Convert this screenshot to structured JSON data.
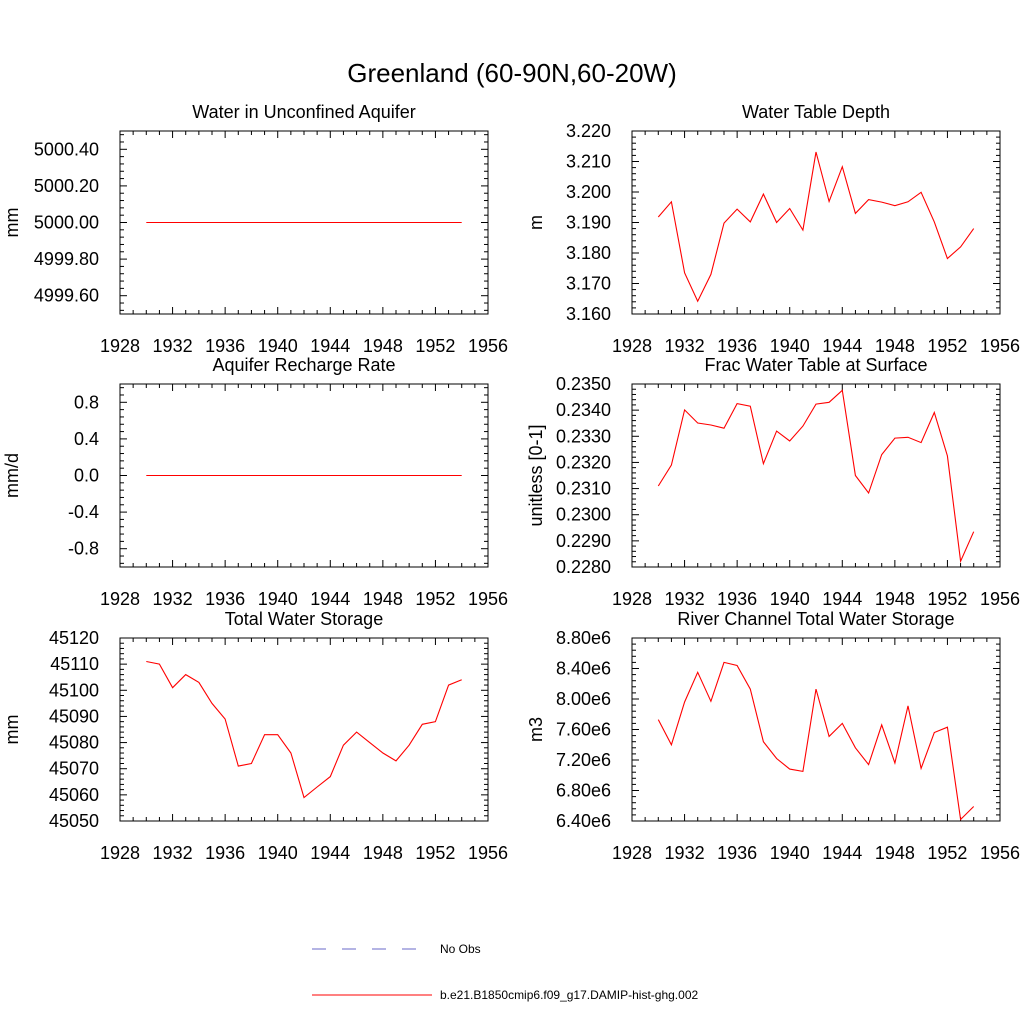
{
  "title": "Greenland (60-90N,60-20W)",
  "legend": [
    {
      "label": "No Obs",
      "color": "#6a6ac8",
      "style": "dashed"
    },
    {
      "label": "b.e21.B1850cmip6.f09_g17.DAMIP-hist-ghg.002",
      "color": "#ff0000",
      "style": "solid"
    }
  ],
  "chart_data": [
    {
      "type": "line",
      "title": "Water in Unconfined Aquifer",
      "ylabel": "mm",
      "xlim": [
        1928,
        1956
      ],
      "xticks": [
        "1928",
        "1932",
        "1936",
        "1940",
        "1944",
        "1948",
        "1952",
        "1956"
      ],
      "ylim": [
        4999.5,
        5000.5
      ],
      "yticks": [
        "4999.60",
        "4999.80",
        "5000.00",
        "5000.20",
        "5000.40"
      ],
      "grid": false,
      "x": [
        1930,
        1931,
        1932,
        1933,
        1934,
        1935,
        1936,
        1937,
        1938,
        1939,
        1940,
        1941,
        1942,
        1943,
        1944,
        1945,
        1946,
        1947,
        1948,
        1949,
        1950,
        1951,
        1952,
        1953,
        1954
      ],
      "series": [
        {
          "color": "#ff0000",
          "values": [
            5000,
            5000,
            5000,
            5000,
            5000,
            5000,
            5000,
            5000,
            5000,
            5000,
            5000,
            5000,
            5000,
            5000,
            5000,
            5000,
            5000,
            5000,
            5000,
            5000,
            5000,
            5000,
            5000,
            5000,
            5000
          ]
        }
      ]
    },
    {
      "type": "line",
      "title": "Water Table Depth",
      "ylabel": "m",
      "xlim": [
        1928,
        1956
      ],
      "xticks": [
        "1928",
        "1932",
        "1936",
        "1940",
        "1944",
        "1948",
        "1952",
        "1956"
      ],
      "ylim": [
        3.16,
        3.22
      ],
      "yticks": [
        "3.160",
        "3.170",
        "3.180",
        "3.190",
        "3.200",
        "3.210",
        "3.220"
      ],
      "grid": false,
      "x": [
        1930,
        1931,
        1932,
        1933,
        1934,
        1935,
        1936,
        1937,
        1938,
        1939,
        1940,
        1941,
        1942,
        1943,
        1944,
        1945,
        1946,
        1947,
        1948,
        1949,
        1950,
        1951,
        1952,
        1953,
        1954
      ],
      "series": [
        {
          "color": "#ff0000",
          "values": [
            3.1918,
            3.1968,
            3.1735,
            3.1642,
            3.173,
            3.1898,
            3.1944,
            3.1902,
            3.1993,
            3.19,
            3.1946,
            3.1875,
            3.2131,
            3.1969,
            3.2083,
            3.193,
            3.1975,
            3.1967,
            3.1955,
            3.1968,
            3.1999,
            3.1902,
            3.1782,
            3.182,
            3.188
          ]
        }
      ]
    },
    {
      "type": "line",
      "title": "Aquifer Recharge Rate",
      "ylabel": "mm/d",
      "xlim": [
        1928,
        1956
      ],
      "xticks": [
        "1928",
        "1932",
        "1936",
        "1940",
        "1944",
        "1948",
        "1952",
        "1956"
      ],
      "ylim": [
        -1,
        1
      ],
      "yticks": [
        "-0.8",
        "-0.4",
        "0.0",
        "0.4",
        "0.8"
      ],
      "grid": false,
      "x": [
        1930,
        1931,
        1932,
        1933,
        1934,
        1935,
        1936,
        1937,
        1938,
        1939,
        1940,
        1941,
        1942,
        1943,
        1944,
        1945,
        1946,
        1947,
        1948,
        1949,
        1950,
        1951,
        1952,
        1953,
        1954
      ],
      "series": [
        {
          "color": "#ff0000",
          "values": [
            0,
            0,
            0,
            0,
            0,
            0,
            0,
            0,
            0,
            0,
            0,
            0,
            0,
            0,
            0,
            0,
            0,
            0,
            0,
            0,
            0,
            0,
            0,
            0,
            0
          ]
        }
      ]
    },
    {
      "type": "line",
      "title": "Frac Water Table at Surface",
      "ylabel": "unitless [0-1]",
      "xlim": [
        1928,
        1956
      ],
      "xticks": [
        "1928",
        "1932",
        "1936",
        "1940",
        "1944",
        "1948",
        "1952",
        "1956"
      ],
      "ylim": [
        0.228,
        0.235
      ],
      "yticks": [
        "0.2280",
        "0.2290",
        "0.2300",
        "0.2310",
        "0.2320",
        "0.2330",
        "0.2340",
        "0.2350"
      ],
      "grid": false,
      "x": [
        1930,
        1931,
        1932,
        1933,
        1934,
        1935,
        1936,
        1937,
        1938,
        1939,
        1940,
        1941,
        1942,
        1943,
        1944,
        1945,
        1946,
        1947,
        1948,
        1949,
        1950,
        1951,
        1952,
        1953,
        1954
      ],
      "series": [
        {
          "color": "#ff0000",
          "values": [
            0.2311,
            0.2319,
            0.23401,
            0.23351,
            0.23343,
            0.23331,
            0.23425,
            0.23415,
            0.23195,
            0.2332,
            0.23282,
            0.23339,
            0.23423,
            0.2343,
            0.23476,
            0.2315,
            0.23083,
            0.2323,
            0.23293,
            0.23296,
            0.23276,
            0.23391,
            0.23225,
            0.22822,
            0.22935
          ]
        }
      ]
    },
    {
      "type": "line",
      "title": "Total Water Storage",
      "ylabel": "mm",
      "xlim": [
        1928,
        1956
      ],
      "xticks": [
        "1928",
        "1932",
        "1936",
        "1940",
        "1944",
        "1948",
        "1952",
        "1956"
      ],
      "ylim": [
        45050,
        45120
      ],
      "yticks": [
        "45050",
        "45060",
        "45070",
        "45080",
        "45090",
        "45100",
        "45110",
        "45120"
      ],
      "grid": false,
      "x": [
        1930,
        1931,
        1932,
        1933,
        1934,
        1935,
        1936,
        1937,
        1938,
        1939,
        1940,
        1941,
        1942,
        1943,
        1944,
        1945,
        1946,
        1947,
        1948,
        1949,
        1950,
        1951,
        1952,
        1953,
        1954
      ],
      "series": [
        {
          "color": "#ff0000",
          "values": [
            45111,
            45110,
            45101,
            45106,
            45103,
            45095,
            45089,
            45071,
            45072,
            45083,
            45083,
            45076,
            45059,
            45063,
            45067,
            45079,
            45084,
            45080,
            45076,
            45073,
            45079,
            45087,
            45088,
            45102,
            45104
          ]
        }
      ]
    },
    {
      "type": "line",
      "title": "River Channel Total Water Storage",
      "ylabel": "m3",
      "xlim": [
        1928,
        1956
      ],
      "xticks": [
        "1928",
        "1932",
        "1936",
        "1940",
        "1944",
        "1948",
        "1952",
        "1956"
      ],
      "ylim": [
        6400000,
        8800000
      ],
      "yticks": [
        "6.40e6",
        "6.80e6",
        "7.20e6",
        "7.60e6",
        "8.00e6",
        "8.40e6",
        "8.80e6"
      ],
      "grid": false,
      "x": [
        1930,
        1931,
        1932,
        1933,
        1934,
        1935,
        1936,
        1937,
        1938,
        1939,
        1940,
        1941,
        1942,
        1943,
        1944,
        1945,
        1946,
        1947,
        1948,
        1949,
        1950,
        1951,
        1952,
        1953,
        1954
      ],
      "series": [
        {
          "color": "#ff0000",
          "values": [
            7730000,
            7400000,
            7960000,
            8350000,
            7970000,
            8480000,
            8440000,
            8130000,
            7440000,
            7220000,
            7080000,
            7050000,
            8130000,
            7510000,
            7680000,
            7360000,
            7140000,
            7660000,
            7160000,
            7910000,
            7090000,
            7560000,
            7630000,
            6420000,
            6590000
          ]
        }
      ]
    }
  ]
}
